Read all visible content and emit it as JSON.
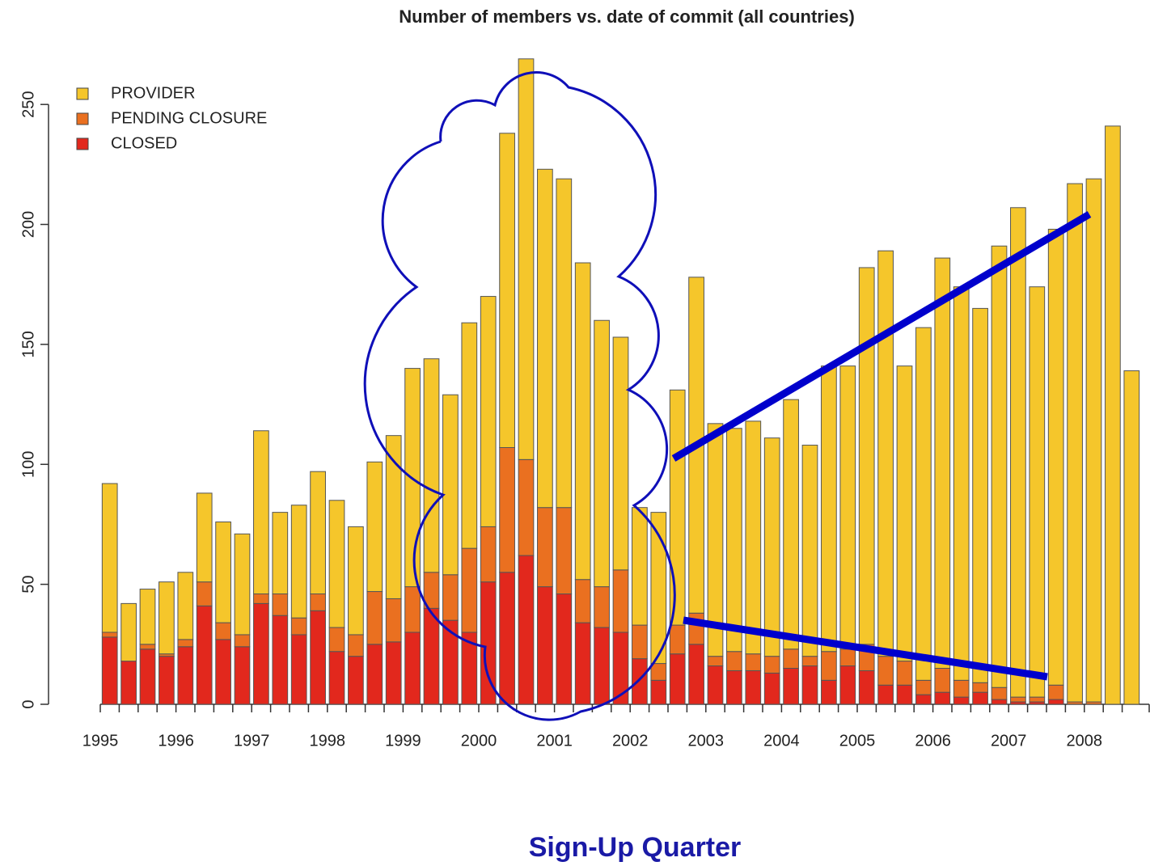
{
  "chart_data": {
    "type": "bar",
    "stacked": true,
    "title": "Number of members vs. date of commit (all countries)",
    "x_label": "Sign-Up Quarter",
    "categories": [
      "1995",
      null,
      null,
      null,
      "1996",
      null,
      null,
      null,
      "1997",
      null,
      null,
      null,
      "1998",
      null,
      null,
      null,
      "1999",
      null,
      null,
      null,
      "2000",
      null,
      null,
      null,
      "2001",
      null,
      null,
      null,
      "2002",
      null,
      null,
      null,
      "2003",
      null,
      null,
      null,
      "2004",
      null,
      null,
      null,
      "2005",
      null,
      null,
      null,
      "2006",
      null,
      null,
      null,
      "2007",
      null,
      null,
      null,
      "2008",
      null,
      null
    ],
    "series": [
      {
        "name": "PROVIDER",
        "color": "#f5c62b",
        "values": [
          62,
          24,
          23,
          30,
          28,
          37,
          42,
          42,
          68,
          34,
          47,
          51,
          53,
          45,
          54,
          68,
          91,
          89,
          75,
          94,
          96,
          131,
          167,
          141,
          137,
          132,
          111,
          97,
          49,
          63,
          98,
          140,
          97,
          93,
          97,
          91,
          104,
          88,
          119,
          118,
          157,
          169,
          123,
          147,
          171,
          164,
          156,
          184,
          204,
          171,
          190,
          216,
          218,
          241,
          139
        ]
      },
      {
        "name": "PENDING CLOSURE",
        "color": "#ea7020",
        "values": [
          2,
          0,
          2,
          1,
          3,
          10,
          7,
          5,
          4,
          9,
          7,
          7,
          10,
          9,
          22,
          18,
          19,
          15,
          19,
          35,
          23,
          52,
          40,
          33,
          36,
          18,
          17,
          26,
          14,
          7,
          12,
          13,
          4,
          8,
          7,
          7,
          8,
          4,
          12,
          7,
          11,
          12,
          10,
          6,
          10,
          7,
          4,
          5,
          2,
          2,
          6,
          1,
          1,
          0,
          0
        ]
      },
      {
        "name": "CLOSED",
        "color": "#e2281d",
        "values": [
          28,
          18,
          23,
          20,
          24,
          41,
          27,
          24,
          42,
          37,
          29,
          39,
          22,
          20,
          25,
          26,
          30,
          40,
          35,
          30,
          51,
          55,
          62,
          49,
          46,
          34,
          32,
          30,
          19,
          10,
          21,
          25,
          16,
          14,
          14,
          13,
          15,
          16,
          10,
          16,
          14,
          8,
          8,
          4,
          5,
          3,
          5,
          2,
          1,
          1,
          2,
          0,
          0,
          0,
          0
        ]
      }
    ],
    "ylim": [
      0,
      275
    ],
    "yticks": [
      0,
      50,
      100,
      150,
      200,
      250
    ],
    "grid": false,
    "legend": "top-left"
  }
}
